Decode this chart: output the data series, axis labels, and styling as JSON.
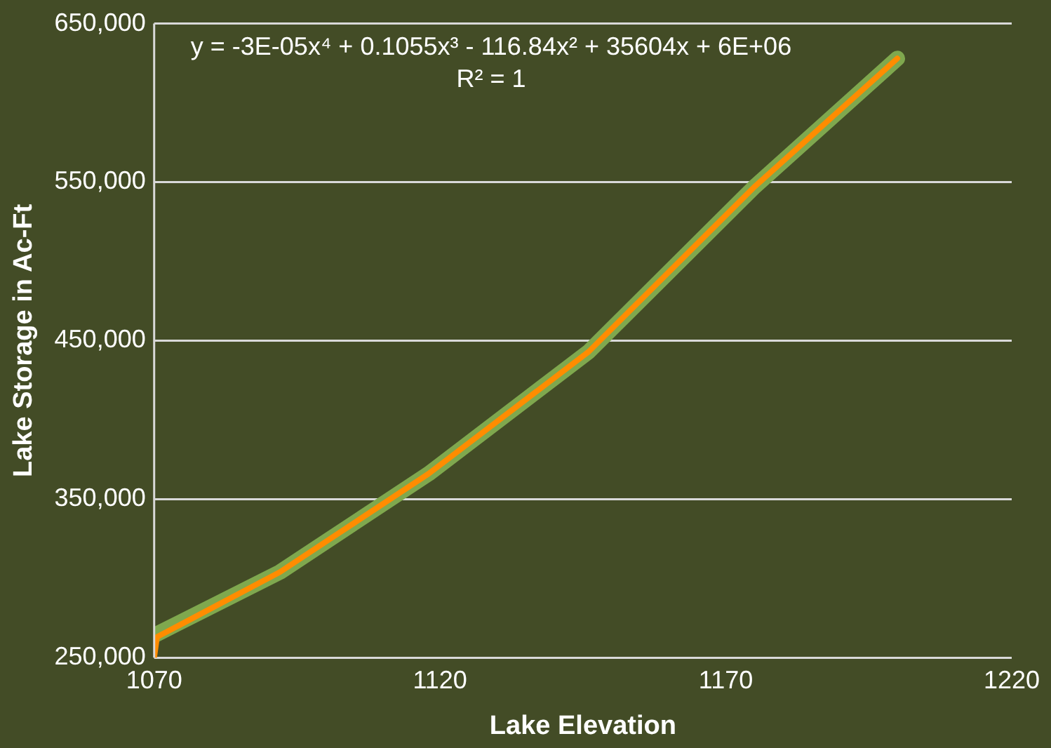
{
  "chart_data": {
    "type": "line",
    "xlabel": "Lake Elevation",
    "ylabel": "Lake Storage in Ac-Ft",
    "annotations": [
      "y = -3E-05x⁴ + 0.1055x³ - 116.84x² + 35604x + 6E+06",
      "R² = 1"
    ],
    "series": [
      {
        "color": "#7fa84e",
        "x": [
          1070,
          1092,
          1118,
          1146,
          1175,
          1200
        ],
        "values": [
          264000,
          304000,
          366000,
          443000,
          547000,
          628000
        ]
      },
      {
        "color": "#ff8c00",
        "x": [
          1070,
          1070.5,
          1092,
          1118,
          1146,
          1175,
          1200
        ],
        "values": [
          250000,
          263000,
          304000,
          366000,
          443000,
          547000,
          628000
        ]
      }
    ],
    "xlim": [
      1070,
      1220
    ],
    "xticks": [
      1070,
      1120,
      1170,
      1220
    ],
    "ylim": [
      250000,
      650000
    ],
    "yticks": [
      {
        "value": 250000,
        "label": "250,000"
      },
      {
        "value": 350000,
        "label": "350,000"
      },
      {
        "value": 450000,
        "label": "450,000"
      },
      {
        "value": 550000,
        "label": "550,000"
      },
      {
        "value": 650000,
        "label": "650,000"
      }
    ],
    "grid": "y",
    "legend": false,
    "marker": "none",
    "line_style": "solid"
  }
}
